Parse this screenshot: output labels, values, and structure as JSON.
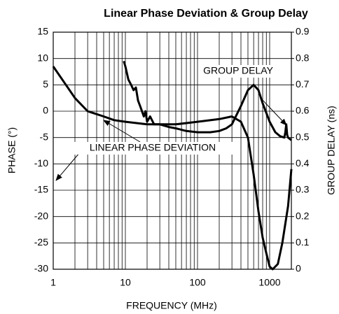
{
  "chart_data": {
    "type": "line",
    "title": "Linear Phase Deviation & Group Delay",
    "x_label": "FREQUENCY (MHz)",
    "y_label": "PHASE (°)",
    "y2_label": "GROUP DELAY (ns)",
    "log_x": true,
    "grid": true,
    "xlim": [
      1,
      2000
    ],
    "xticks": [
      1,
      10,
      100,
      1000
    ],
    "xminorticks": [
      2,
      3,
      4,
      5,
      6,
      7,
      8,
      9,
      20,
      30,
      40,
      50,
      60,
      70,
      80,
      90,
      200,
      300,
      400,
      500,
      600,
      700,
      800,
      900,
      2000
    ],
    "ylim": [
      -30,
      15
    ],
    "yticks": [
      -30,
      -25,
      -20,
      -15,
      -10,
      -5,
      0,
      5,
      10,
      15
    ],
    "y2lim": [
      0,
      0.9
    ],
    "y2ticks": [
      0,
      0.1,
      0.2,
      0.3,
      0.4,
      0.5,
      0.6,
      0.7,
      0.8,
      0.9
    ],
    "series": [
      {
        "name": "LINEAR PHASE DEVIATION",
        "color": "#000000",
        "x": [
          1,
          1.5,
          2,
          3,
          5,
          7,
          10,
          20,
          50,
          100,
          200,
          300,
          400,
          500,
          600,
          700,
          800,
          900,
          1000,
          1100,
          1300,
          1500,
          1800,
          2000
        ],
        "values": [
          8.5,
          5,
          2.5,
          0,
          -1,
          -1.7,
          -2,
          -2.5,
          -2.5,
          -2,
          -1.5,
          -1,
          -2,
          -5,
          -12,
          -19,
          -24,
          -27,
          -29.5,
          -30,
          -29,
          -25,
          -18,
          -11
        ]
      },
      {
        "name": "GROUP DELAY",
        "color": "#000000",
        "axis": "y2",
        "x": [
          9.5,
          10,
          11,
          12,
          13,
          14,
          15,
          16,
          17,
          18,
          19,
          20,
          22,
          25,
          30,
          40,
          50,
          70,
          100,
          150,
          200,
          250,
          300,
          400,
          500,
          600,
          700,
          800,
          1000,
          1200,
          1400,
          1600,
          1650,
          1700,
          1750,
          1800,
          2000
        ],
        "values": [
          0.79,
          0.77,
          0.72,
          0.7,
          0.68,
          0.69,
          0.64,
          0.62,
          0.6,
          0.58,
          0.6,
          0.56,
          0.58,
          0.55,
          0.55,
          0.54,
          0.535,
          0.525,
          0.52,
          0.52,
          0.525,
          0.535,
          0.55,
          0.62,
          0.68,
          0.7,
          0.68,
          0.63,
          0.56,
          0.52,
          0.505,
          0.5,
          0.52,
          0.55,
          0.51,
          0.5,
          0.49
        ]
      }
    ]
  }
}
